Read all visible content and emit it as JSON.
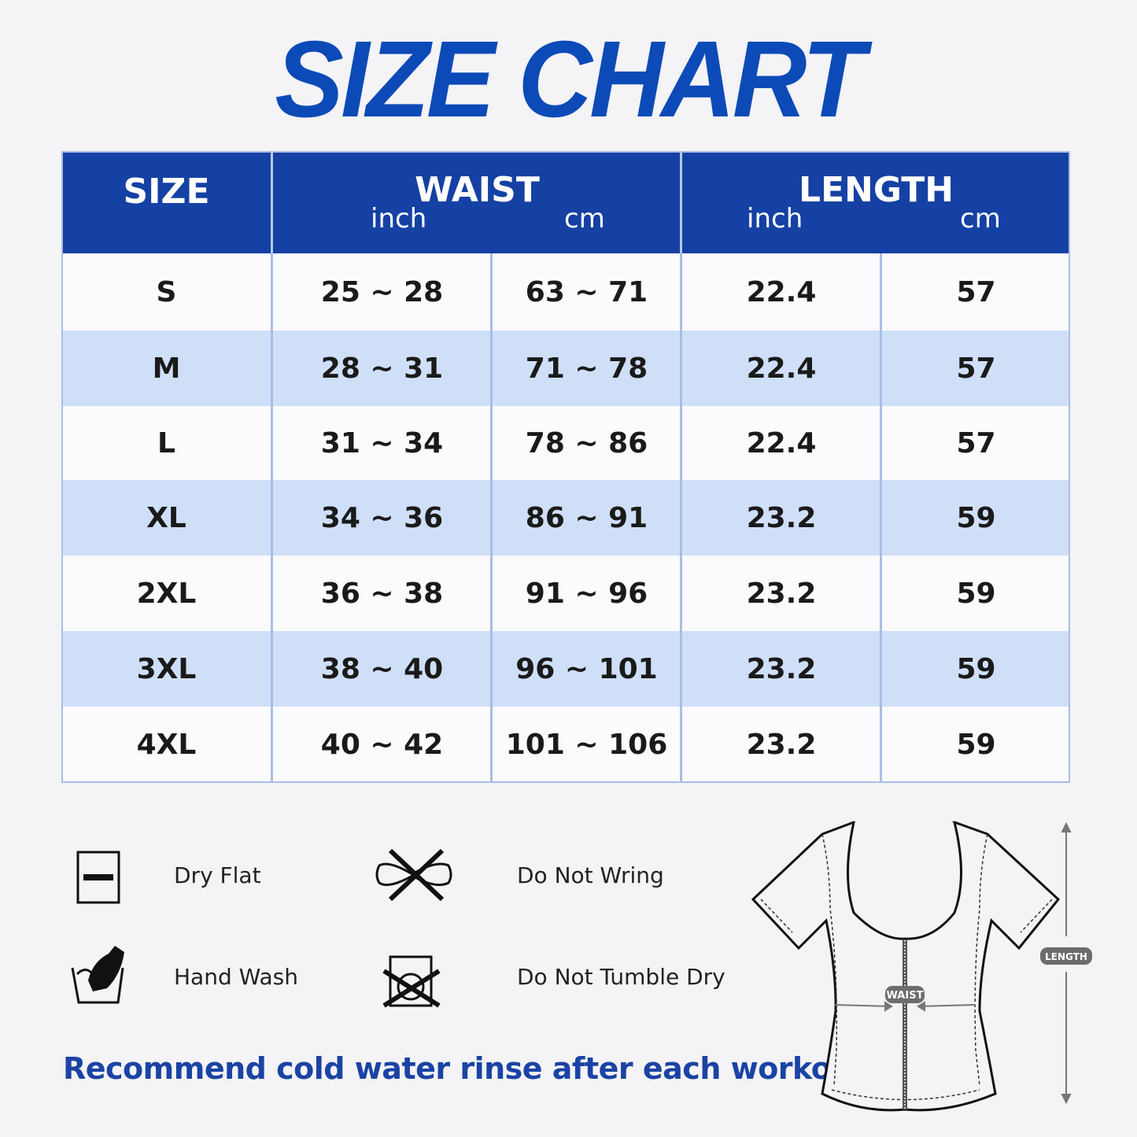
{
  "title": "SIZE CHART",
  "table": {
    "headers": {
      "size": "SIZE",
      "waist": "WAIST",
      "length": "LENGTH",
      "inch": "inch",
      "cm": "cm"
    },
    "rows": [
      {
        "size": "S",
        "waist_inch": "25 ~ 28",
        "waist_cm": "63 ~ 71",
        "length_inch": "22.4",
        "length_cm": "57"
      },
      {
        "size": "M",
        "waist_inch": "28 ~ 31",
        "waist_cm": "71 ~ 78",
        "length_inch": "22.4",
        "length_cm": "57"
      },
      {
        "size": "L",
        "waist_inch": "31 ~ 34",
        "waist_cm": "78 ~ 86",
        "length_inch": "22.4",
        "length_cm": "57"
      },
      {
        "size": "XL",
        "waist_inch": "34 ~ 36",
        "waist_cm": "86 ~ 91",
        "length_inch": "23.2",
        "length_cm": "59"
      },
      {
        "size": "2XL",
        "waist_inch": "36 ~ 38",
        "waist_cm": "91 ~ 96",
        "length_inch": "23.2",
        "length_cm": "59"
      },
      {
        "size": "3XL",
        "waist_inch": "38 ~ 40",
        "waist_cm": "96 ~ 101",
        "length_inch": "23.2",
        "length_cm": "59"
      },
      {
        "size": "4XL",
        "waist_inch": "40 ~ 42",
        "waist_cm": "101 ~ 106",
        "length_inch": "23.2",
        "length_cm": "59"
      }
    ]
  },
  "care": {
    "dry_flat": {
      "label": "Dry Flat",
      "icon": "dry-flat-icon"
    },
    "do_not_wring": {
      "label": "Do Not Wring",
      "icon": "do-not-wring-icon"
    },
    "hand_wash": {
      "label": "Hand Wash",
      "icon": "hand-wash-icon"
    },
    "do_not_tumble_dry": {
      "label": "Do Not Tumble Dry",
      "icon": "do-not-tumble-dry-icon"
    }
  },
  "note": "Recommend cold water rinse after each workout.",
  "diagram": {
    "waist_label": "WAIST",
    "length_label": "LENGTH"
  },
  "colors": {
    "header": "#1441a3",
    "stripe": "#cfdff8",
    "title": "#0c4ab8"
  }
}
